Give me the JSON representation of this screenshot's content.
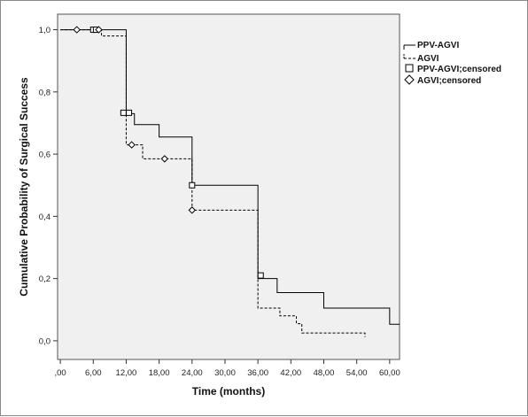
{
  "chart_data": {
    "type": "line",
    "subtype": "kaplan-meier survival",
    "title": "",
    "xlabel": "Time (months)",
    "ylabel": "Cumulative Probability of Surgical Success",
    "xlim": [
      -0.5,
      61.8
    ],
    "ylim": [
      -0.06,
      1.05
    ],
    "x_ticks": [
      0,
      6,
      12,
      18,
      24,
      30,
      36,
      42,
      48,
      54,
      60
    ],
    "x_tick_labels": [
      ",00",
      "6,00",
      "12,00",
      "18,00",
      "24,00",
      "30,00",
      "36,00",
      "42,00",
      "48,00",
      "54,00",
      "60,00"
    ],
    "y_ticks": [
      0,
      0.2,
      0.4,
      0.6,
      0.8,
      1.0
    ],
    "y_tick_labels": [
      "0,0",
      "0,2",
      "0,4",
      "0,6",
      "0,8",
      "1,0"
    ],
    "grid": false,
    "plot_background": "#f0f0f0",
    "legend_position": "right",
    "series": [
      {
        "name": "PPV-AGVI",
        "style": "solid",
        "color": "#000000",
        "steps": [
          [
            0,
            1.0
          ],
          [
            12,
            0.73
          ],
          [
            13.5,
            0.695
          ],
          [
            18,
            0.655
          ],
          [
            24,
            0.5
          ],
          [
            36,
            0.2
          ],
          [
            39.5,
            0.155
          ],
          [
            48,
            0.105
          ],
          [
            60,
            0.053
          ],
          [
            61.8,
            0.053
          ]
        ]
      },
      {
        "name": "AGVI",
        "style": "dashed",
        "color": "#000000",
        "steps": [
          [
            0,
            1.0
          ],
          [
            7.5,
            0.98
          ],
          [
            12,
            0.63
          ],
          [
            15,
            0.585
          ],
          [
            24,
            0.42
          ],
          [
            36,
            0.105
          ],
          [
            40,
            0.08
          ],
          [
            43,
            0.055
          ],
          [
            44,
            0.025
          ],
          [
            55.5,
            0.012
          ]
        ]
      }
    ],
    "censored": [
      {
        "name": "PPV-AGVI;censored",
        "marker": "square",
        "points": [
          [
            6,
            1.0
          ],
          [
            6.5,
            1.0
          ],
          [
            11.5,
            0.733
          ],
          [
            12.5,
            0.733
          ],
          [
            24,
            0.5
          ],
          [
            36.5,
            0.21
          ]
        ]
      },
      {
        "name": "AGVI;censored",
        "marker": "diamond",
        "points": [
          [
            3,
            1.0
          ],
          [
            7,
            1.0
          ],
          [
            13,
            0.63
          ],
          [
            19,
            0.585
          ],
          [
            24,
            0.42
          ]
        ]
      }
    ]
  }
}
